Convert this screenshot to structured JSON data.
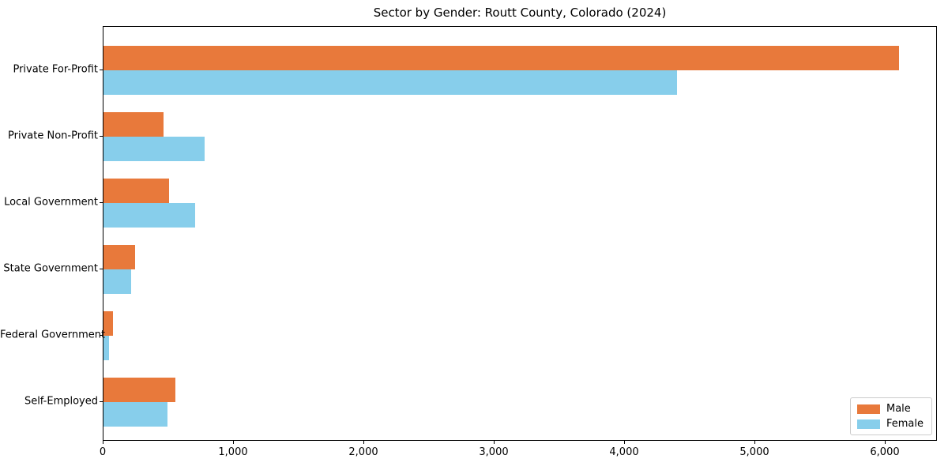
{
  "chart_data": {
    "type": "bar",
    "orientation": "horizontal",
    "title": "Sector by Gender: Routt County, Colorado (2024)",
    "categories": [
      "Private For-Profit",
      "Private Non-Profit",
      "Local Government",
      "State Government",
      "Federal Government",
      "Self-Employed"
    ],
    "series": [
      {
        "name": "Male",
        "color": "#e8793b",
        "values": [
          6100,
          460,
          500,
          245,
          75,
          550
        ]
      },
      {
        "name": "Female",
        "color": "#87ceeb",
        "values": [
          4400,
          775,
          700,
          210,
          45,
          490
        ]
      }
    ],
    "xlabel": "",
    "ylabel": "",
    "xlim": [
      0,
      6400
    ],
    "xticks": {
      "values": [
        0,
        1000,
        2000,
        3000,
        4000,
        5000,
        6000
      ],
      "labels": [
        "0",
        "1,000",
        "2,000",
        "3,000",
        "4,000",
        "5,000",
        "6,000"
      ]
    },
    "grid": false,
    "legend": {
      "position": "lower right",
      "entries": [
        "Male",
        "Female"
      ]
    }
  }
}
